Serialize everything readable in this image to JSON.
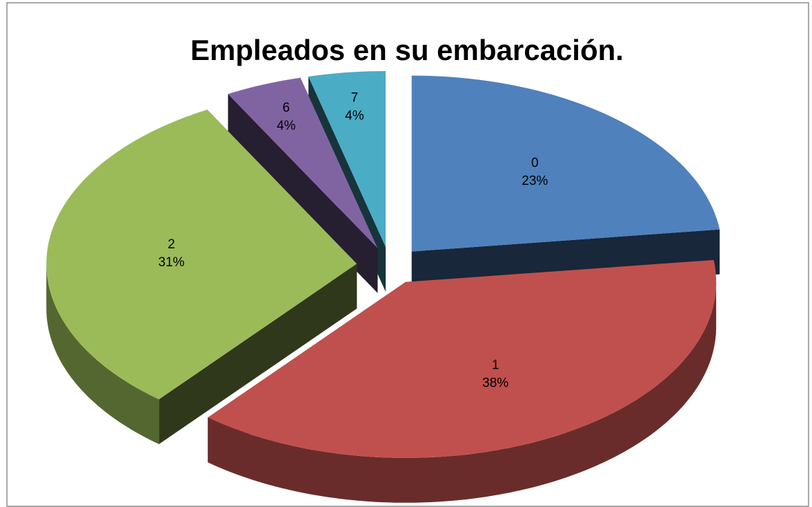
{
  "chart_data": {
    "type": "pie",
    "title": "Empleados en su embarcación.",
    "categories": [
      "0",
      "1",
      "2",
      "6",
      "7"
    ],
    "values": [
      23,
      38,
      31,
      4,
      4
    ],
    "value_labels": [
      "23%",
      "38%",
      "31%",
      "4%",
      "4%"
    ],
    "colors": [
      "#4f81bd",
      "#c0504d",
      "#9bbb59",
      "#8064a2",
      "#4bacc6"
    ],
    "exploded": true,
    "three_d": true
  }
}
